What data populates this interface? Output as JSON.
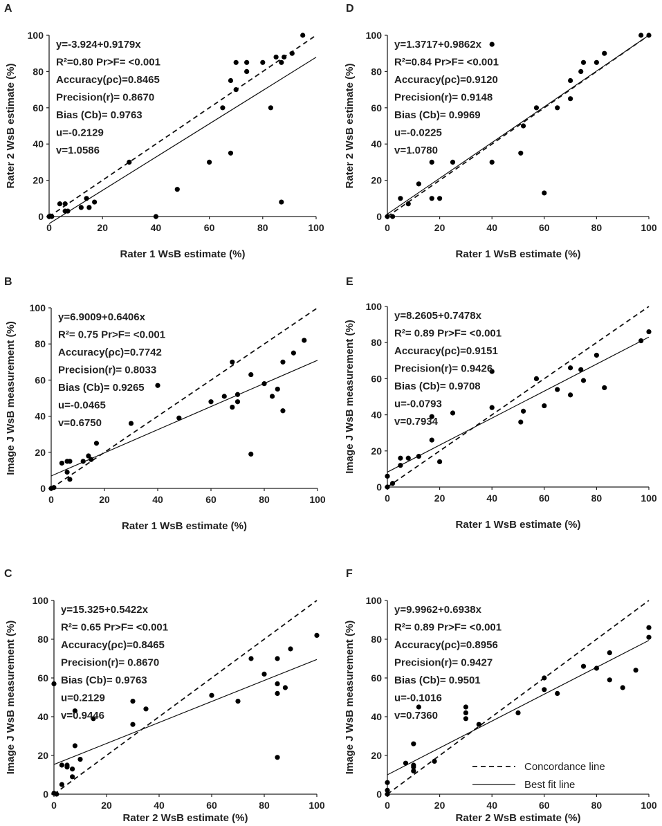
{
  "legend": {
    "concordance": "Concordance line",
    "bestfit": "Best fit line"
  },
  "chart_data": [
    {
      "type": "scatter",
      "panel": "A",
      "xlabel": "Rater 1 WsB estimate (%)",
      "ylabel": "Rater 2 WsB estimate (%)",
      "xlim": [
        0,
        100
      ],
      "ylim": [
        0,
        100
      ],
      "xticks": [
        0,
        20,
        40,
        60,
        80,
        100
      ],
      "yticks": [
        0,
        20,
        40,
        60,
        80,
        100
      ],
      "fit": {
        "intercept": -3.924,
        "slope": 0.9179
      },
      "stats": {
        "equation": "y=-3.924+0.9179x",
        "r2": "R²=0.80  Pr>F= <0.001",
        "accuracy": "Accuracy(ρc)=0.8465",
        "precision": "Precision(r)= 0.8670",
        "bias": "Bias (Cb)= 0.9763",
        "u": "u=-0.2129",
        "v": "v=1.0586"
      },
      "points": [
        [
          0,
          0
        ],
        [
          0.5,
          0.3
        ],
        [
          1,
          0
        ],
        [
          4,
          7
        ],
        [
          6,
          7
        ],
        [
          6,
          3
        ],
        [
          7,
          3
        ],
        [
          12,
          5
        ],
        [
          14,
          10
        ],
        [
          15,
          5
        ],
        [
          17,
          8
        ],
        [
          30,
          30
        ],
        [
          40,
          0
        ],
        [
          48,
          15
        ],
        [
          60,
          30
        ],
        [
          65,
          60
        ],
        [
          68,
          75
        ],
        [
          68,
          35
        ],
        [
          70,
          70
        ],
        [
          70,
          85
        ],
        [
          74,
          85
        ],
        [
          74,
          80
        ],
        [
          80,
          85
        ],
        [
          83,
          60
        ],
        [
          85,
          88
        ],
        [
          87,
          85
        ],
        [
          87,
          8
        ],
        [
          88,
          88
        ],
        [
          91,
          90
        ],
        [
          95,
          100
        ]
      ]
    },
    {
      "type": "scatter",
      "panel": "B",
      "xlabel": "Rater 1 WsB estimate (%)",
      "ylabel": "Image J WsB measurement (%)",
      "xlim": [
        0,
        100
      ],
      "ylim": [
        0,
        100
      ],
      "xticks": [
        0,
        20,
        40,
        60,
        80,
        100
      ],
      "yticks": [
        0,
        20,
        40,
        60,
        80,
        100
      ],
      "fit": {
        "intercept": 6.9009,
        "slope": 0.6406
      },
      "stats": {
        "equation": "y=6.9009+0.6406x",
        "r2": "R²=  0.75  Pr>F= <0.001",
        "accuracy": "Accuracy(ρc)=0.7742",
        "precision": "Precision(r)= 0.8033",
        "bias": "Bias (Cb)= 0.9265",
        "u": "u=-0.0465",
        "v": "v=0.6750"
      },
      "points": [
        [
          0,
          0
        ],
        [
          1,
          0.5
        ],
        [
          4,
          14
        ],
        [
          6,
          15
        ],
        [
          6,
          9
        ],
        [
          7,
          15
        ],
        [
          7,
          5
        ],
        [
          12,
          15
        ],
        [
          14,
          18
        ],
        [
          15,
          16
        ],
        [
          17,
          25
        ],
        [
          30,
          36
        ],
        [
          40,
          57
        ],
        [
          48,
          39
        ],
        [
          60,
          48
        ],
        [
          65,
          51
        ],
        [
          68,
          70
        ],
        [
          68,
          45
        ],
        [
          70,
          48
        ],
        [
          70,
          52
        ],
        [
          75,
          63
        ],
        [
          75,
          19
        ],
        [
          80,
          58
        ],
        [
          83,
          51
        ],
        [
          85,
          55
        ],
        [
          87,
          70
        ],
        [
          87,
          43
        ],
        [
          91,
          75
        ],
        [
          95,
          82
        ]
      ]
    },
    {
      "type": "scatter",
      "panel": "C",
      "xlabel": "Rater 2 WsB estimate (%)",
      "ylabel": "Image J WsB measurement (%)",
      "xlim": [
        0,
        100
      ],
      "ylim": [
        0,
        100
      ],
      "xticks": [
        0,
        20,
        40,
        60,
        80,
        100
      ],
      "yticks": [
        0,
        20,
        40,
        60,
        80,
        100
      ],
      "fit": {
        "intercept": 15.325,
        "slope": 0.5422
      },
      "stats": {
        "equation": "y=15.325+0.5422x",
        "r2": "R²=  0.65  Pr>F= <0.001",
        "accuracy": "Accuracy(ρc)=0.8465",
        "precision": "Precision(r)= 0.8670",
        "bias": "Bias (Cb)= 0.9763",
        "u": "u=0.2129",
        "v": "v=0.9446"
      },
      "points": [
        [
          0,
          57
        ],
        [
          0,
          0.5
        ],
        [
          1,
          0
        ],
        [
          3,
          15
        ],
        [
          3,
          5
        ],
        [
          5,
          15
        ],
        [
          5,
          14
        ],
        [
          7,
          9
        ],
        [
          7,
          13
        ],
        [
          8,
          25
        ],
        [
          8,
          43
        ],
        [
          10,
          18
        ],
        [
          15,
          39
        ],
        [
          30,
          36
        ],
        [
          30,
          48
        ],
        [
          35,
          44
        ],
        [
          60,
          51
        ],
        [
          70,
          48
        ],
        [
          75,
          70
        ],
        [
          80,
          62
        ],
        [
          85,
          70
        ],
        [
          85,
          57
        ],
        [
          85,
          52
        ],
        [
          85,
          19
        ],
        [
          88,
          55
        ],
        [
          90,
          75
        ],
        [
          100,
          82
        ]
      ]
    },
    {
      "type": "scatter",
      "panel": "D",
      "xlabel": "Rater 1 WsB estimate (%)",
      "ylabel": "Rater 2 WsB estimate (%)",
      "xlim": [
        0,
        100
      ],
      "ylim": [
        0,
        100
      ],
      "xticks": [
        0,
        20,
        40,
        60,
        80,
        100
      ],
      "yticks": [
        0,
        20,
        40,
        60,
        80,
        100
      ],
      "fit": {
        "intercept": 1.3717,
        "slope": 0.9862
      },
      "stats": {
        "equation": "y=1.3717+0.9862x",
        "r2": "R²=0.84  Pr>F= <0.001",
        "accuracy": "Accuracy(ρc)=0.9120",
        "precision": "Precision(r)= 0.9148",
        "bias": "Bias (Cb)= 0.9969",
        "u": "u=-0.0225",
        "v": "v=1.0780"
      },
      "points": [
        [
          0,
          0
        ],
        [
          2,
          0
        ],
        [
          5,
          10
        ],
        [
          8,
          7
        ],
        [
          12,
          18
        ],
        [
          17,
          30
        ],
        [
          17,
          10
        ],
        [
          20,
          10
        ],
        [
          25,
          30
        ],
        [
          40,
          30
        ],
        [
          40,
          95
        ],
        [
          51,
          35
        ],
        [
          52,
          50
        ],
        [
          57,
          60
        ],
        [
          60,
          13
        ],
        [
          65,
          60
        ],
        [
          70,
          65
        ],
        [
          70,
          75
        ],
        [
          74,
          80
        ],
        [
          75,
          85
        ],
        [
          80,
          85
        ],
        [
          83,
          90
        ],
        [
          97,
          100
        ],
        [
          100,
          100
        ]
      ]
    },
    {
      "type": "scatter",
      "panel": "E",
      "xlabel": "Rater 1 WsB estimate (%)",
      "ylabel": "Image J WsB measurement (%)",
      "xlim": [
        0,
        100
      ],
      "ylim": [
        0,
        100
      ],
      "xticks": [
        0,
        20,
        40,
        60,
        80,
        100
      ],
      "yticks": [
        0,
        20,
        40,
        60,
        80,
        100
      ],
      "fit": {
        "intercept": 8.2605,
        "slope": 0.7478
      },
      "stats": {
        "equation": "y=8.2605+0.7478x",
        "r2": "R²=  0.89  Pr>F= <0.001",
        "accuracy": "Accuracy(ρc)=0.9151",
        "precision": "Precision(r)= 0.9426",
        "bias": "Bias (Cb)= 0.9708",
        "u": "u=-0.0793",
        "v": "v=0.7934"
      },
      "points": [
        [
          0,
          6
        ],
        [
          0,
          0
        ],
        [
          2,
          2
        ],
        [
          5,
          12
        ],
        [
          5,
          16
        ],
        [
          8,
          16
        ],
        [
          12,
          17
        ],
        [
          17,
          39
        ],
        [
          17,
          26
        ],
        [
          20,
          14
        ],
        [
          25,
          41
        ],
        [
          40,
          64
        ],
        [
          40,
          44
        ],
        [
          51,
          36
        ],
        [
          52,
          42
        ],
        [
          57,
          60
        ],
        [
          60,
          45
        ],
        [
          65,
          54
        ],
        [
          70,
          66
        ],
        [
          70,
          51
        ],
        [
          74,
          65
        ],
        [
          75,
          59
        ],
        [
          80,
          73
        ],
        [
          83,
          55
        ],
        [
          97,
          81
        ],
        [
          100,
          86
        ]
      ]
    },
    {
      "type": "scatter",
      "panel": "F",
      "xlabel": "Rater 2 WsB estimate (%)",
      "ylabel": "Image J WsB measurement (%)",
      "xlim": [
        0,
        100
      ],
      "ylim": [
        0,
        100
      ],
      "xticks": [
        0,
        20,
        40,
        60,
        80,
        100
      ],
      "yticks": [
        0,
        20,
        40,
        60,
        80,
        100
      ],
      "fit": {
        "intercept": 9.9962,
        "slope": 0.6938
      },
      "stats": {
        "equation": "y=9.9962+0.6938x",
        "r2": "R²=  0.89  Pr>F= <0.001",
        "accuracy": "Accuracy(ρc)=0.8956",
        "precision": "Precision(r)= 0.9427",
        "bias": "Bias (Cb)= 0.9501",
        "u": "u=-0.1016",
        "v": "v=0.7360"
      },
      "points": [
        [
          0,
          6
        ],
        [
          0,
          2
        ],
        [
          0,
          0
        ],
        [
          7,
          16
        ],
        [
          10,
          26
        ],
        [
          10,
          15
        ],
        [
          10,
          14
        ],
        [
          10,
          12
        ],
        [
          12,
          45
        ],
        [
          18,
          17
        ],
        [
          30,
          45
        ],
        [
          30,
          42
        ],
        [
          30,
          39
        ],
        [
          35,
          36
        ],
        [
          50,
          42
        ],
        [
          60,
          60
        ],
        [
          60,
          54
        ],
        [
          65,
          52
        ],
        [
          75,
          66
        ],
        [
          80,
          65
        ],
        [
          85,
          73
        ],
        [
          85,
          59
        ],
        [
          90,
          55
        ],
        [
          95,
          64
        ],
        [
          100,
          86
        ],
        [
          100,
          81
        ]
      ]
    }
  ]
}
